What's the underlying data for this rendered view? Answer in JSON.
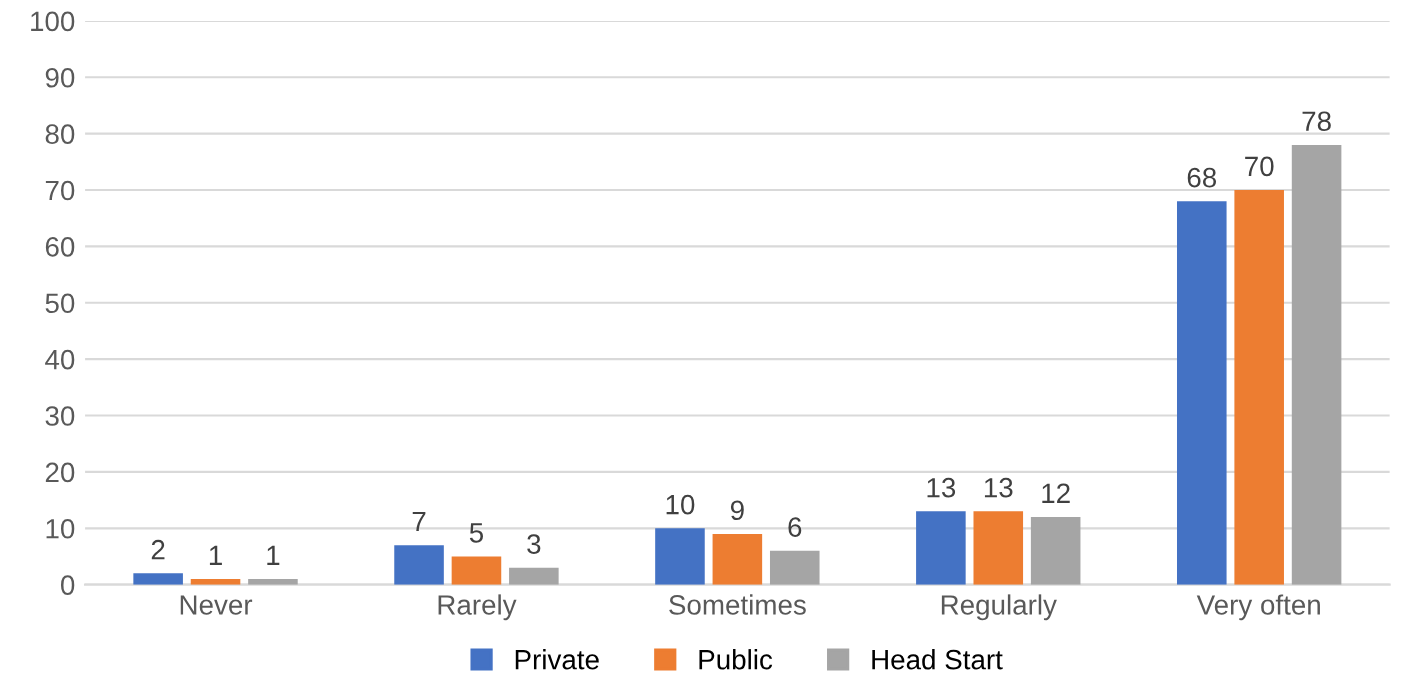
{
  "chart_data": {
    "type": "bar",
    "categories": [
      "Never",
      "Rarely",
      "Sometimes",
      "Regularly",
      "Very often"
    ],
    "series": [
      {
        "name": "Private",
        "color": "#4472c4",
        "values": [
          2,
          7,
          10,
          13,
          68
        ]
      },
      {
        "name": "Public",
        "color": "#ed7d31",
        "values": [
          1,
          5,
          9,
          13,
          70
        ]
      },
      {
        "name": "Head Start",
        "color": "#a5a5a5",
        "values": [
          1,
          3,
          6,
          12,
          78
        ]
      }
    ],
    "ylim": [
      0,
      100
    ],
    "yticks": [
      0,
      10,
      20,
      30,
      40,
      50,
      60,
      70,
      80,
      90,
      100
    ],
    "grid": "y",
    "legend": "bottom",
    "data_labels": true
  }
}
